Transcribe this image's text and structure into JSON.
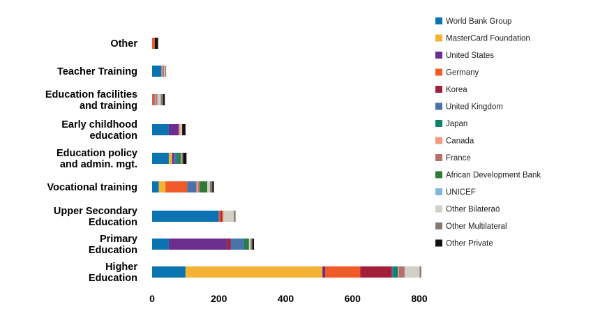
{
  "chart_data": {
    "type": "bar",
    "orientation": "horizontal",
    "stacked": true,
    "title": "",
    "xlabel": "",
    "ylabel": "",
    "xlim": [
      0,
      800
    ],
    "ticks": [
      0,
      200,
      400,
      600,
      800
    ],
    "grid": false,
    "legend_position": "right",
    "categories": [
      {
        "line1": "Other",
        "line2": ""
      },
      {
        "line1": "Teacher Training",
        "line2": ""
      },
      {
        "line1": "Education facilities",
        "line2": "and training"
      },
      {
        "line1": "Early childhood",
        "line2": "education"
      },
      {
        "line1": "Education policy",
        "line2": "and admin. mgt."
      },
      {
        "line1": "Vocational training",
        "line2": ""
      },
      {
        "line1": "Upper Secondary",
        "line2": "Education"
      },
      {
        "line1": "Primary",
        "line2": "Education"
      },
      {
        "line1": "Higher",
        "line2": "Education"
      }
    ],
    "series": [
      {
        "name": "World Bank Group",
        "color": "#0a73b0",
        "values": [
          0,
          28,
          0,
          50,
          50,
          20,
          200,
          50,
          100
        ]
      },
      {
        "name": "MasterCard Foundation",
        "color": "#f5b335",
        "values": [
          0,
          0,
          0,
          0,
          10,
          20,
          0,
          0,
          410
        ]
      },
      {
        "name": "United States",
        "color": "#6b2d8e",
        "values": [
          0,
          0,
          0,
          30,
          5,
          0,
          0,
          175,
          8
        ]
      },
      {
        "name": "Germany",
        "color": "#f05a28",
        "values": [
          8,
          0,
          5,
          0,
          0,
          65,
          5,
          0,
          105
        ]
      },
      {
        "name": "Korea",
        "color": "#a3203a",
        "values": [
          0,
          0,
          0,
          0,
          0,
          0,
          5,
          10,
          95
        ]
      },
      {
        "name": "United Kingdom",
        "color": "#4a72a8",
        "values": [
          0,
          0,
          3,
          0,
          8,
          28,
          0,
          40,
          3
        ]
      },
      {
        "name": "Japan",
        "color": "#11806e",
        "values": [
          0,
          0,
          0,
          0,
          5,
          0,
          0,
          5,
          15
        ]
      },
      {
        "name": "Canada",
        "color": "#f19a7e",
        "values": [
          0,
          3,
          3,
          5,
          0,
          5,
          5,
          0,
          3
        ]
      },
      {
        "name": "France",
        "color": "#b5706e",
        "values": [
          0,
          5,
          5,
          0,
          0,
          5,
          0,
          0,
          17
        ]
      },
      {
        "name": "African Development Bank",
        "color": "#2f7a35",
        "values": [
          0,
          0,
          0,
          0,
          8,
          22,
          0,
          10,
          0
        ]
      },
      {
        "name": "UNICEF",
        "color": "#7fb6dc",
        "values": [
          0,
          0,
          0,
          0,
          0,
          0,
          0,
          0,
          0
        ]
      },
      {
        "name": "Other Bilateraö",
        "color": "#d3cec6",
        "values": [
          0,
          3,
          10,
          5,
          2,
          8,
          30,
          5,
          45
        ]
      },
      {
        "name": "Other Multilateral",
        "color": "#847b70",
        "values": [
          0,
          3,
          7,
          0,
          5,
          7,
          5,
          5,
          5
        ]
      },
      {
        "name": "Other Private",
        "color": "#111111",
        "values": [
          10,
          0,
          5,
          10,
          10,
          5,
          0,
          5,
          0
        ]
      }
    ]
  }
}
